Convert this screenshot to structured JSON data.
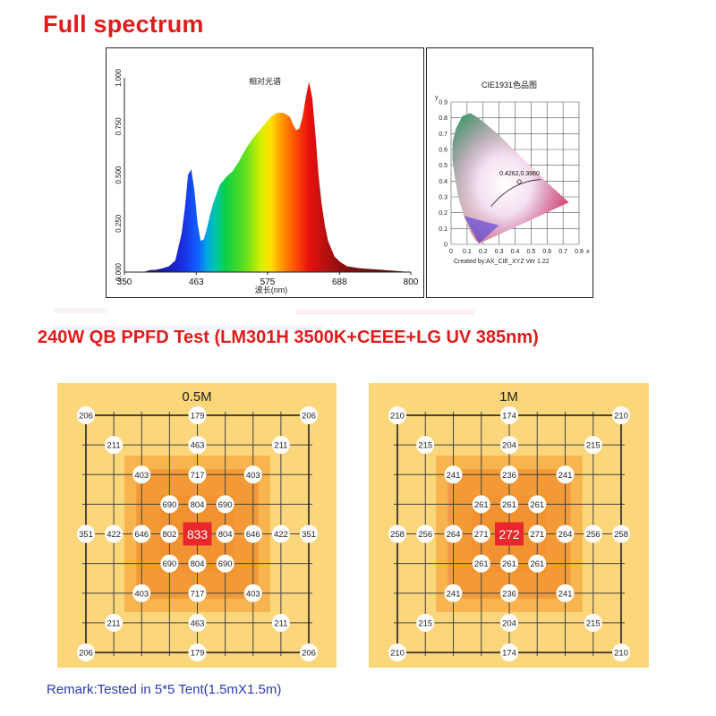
{
  "title": "Full spectrum",
  "test_title": "240W QB PPFD Test (LM301H 3500K+CEEE+LG UV 385nm)",
  "remark": "Remark:Tested in 5*5 Tent(1.5mX1.5m)",
  "colors": {
    "title_red": "#e01b1b",
    "remark_blue": "#2a3aa8",
    "grid_bg": "#fcd67a",
    "zone_mid": "#f8b44e",
    "zone_inner": "#f29230",
    "center_red": "#e8282a"
  },
  "chart_data": [
    {
      "type": "area",
      "title": "相对光谱",
      "xlabel": "波长(nm)",
      "ylabel": "",
      "xlim": [
        350,
        800
      ],
      "ylim": [
        0,
        1.0
      ],
      "xticks": [
        "350",
        "463",
        "575",
        "688",
        "800"
      ],
      "yticks": [
        "0.000",
        "0.250",
        "0.500",
        "0.750",
        "1.000"
      ],
      "x": [
        350,
        380,
        390,
        400,
        410,
        420,
        430,
        440,
        445,
        450,
        455,
        460,
        465,
        470,
        475,
        480,
        485,
        490,
        500,
        510,
        520,
        530,
        540,
        550,
        560,
        570,
        580,
        590,
        600,
        610,
        615,
        620,
        625,
        630,
        635,
        640,
        645,
        650,
        655,
        660,
        665,
        670,
        680,
        690,
        700,
        720,
        740,
        760,
        780,
        800
      ],
      "y": [
        0,
        0,
        0.01,
        0.012,
        0.02,
        0.03,
        0.06,
        0.2,
        0.33,
        0.5,
        0.53,
        0.42,
        0.25,
        0.16,
        0.17,
        0.23,
        0.3,
        0.36,
        0.45,
        0.49,
        0.52,
        0.57,
        0.63,
        0.68,
        0.72,
        0.76,
        0.8,
        0.82,
        0.82,
        0.8,
        0.76,
        0.73,
        0.74,
        0.8,
        0.9,
        0.98,
        0.9,
        0.72,
        0.5,
        0.35,
        0.24,
        0.16,
        0.08,
        0.05,
        0.03,
        0.02,
        0.015,
        0.01,
        0.005,
        0
      ]
    },
    {
      "type": "scatter",
      "title": "CIE1931色品图",
      "footer": "Created by:AX_CIE_XYZ Ver 1.22",
      "xlabel": "x",
      "ylabel": "y",
      "xlim": [
        0,
        0.8
      ],
      "ylim": [
        0,
        0.9
      ],
      "xticks": [
        "0",
        "0.1",
        "0.2",
        "0.3",
        "0.4",
        "0.5",
        "0.6",
        "0.7",
        "0.8"
      ],
      "yticks": [
        "0",
        "0.1",
        "0.2",
        "0.3",
        "0.4",
        "0.5",
        "0.6",
        "0.7",
        "0.8",
        "0.9"
      ],
      "point": {
        "x": 0.4262,
        "y": 0.396,
        "label": "0.4262,0.3960"
      }
    },
    {
      "type": "table",
      "title": "0.5M",
      "points": [
        {
          "v": "206",
          "c": 0,
          "r": 0
        },
        {
          "v": "179",
          "c": 4,
          "r": 0
        },
        {
          "v": "206",
          "c": 8,
          "r": 0
        },
        {
          "v": "211",
          "c": 1,
          "r": 1
        },
        {
          "v": "463",
          "c": 4,
          "r": 1
        },
        {
          "v": "211",
          "c": 7,
          "r": 1
        },
        {
          "v": "403",
          "c": 2,
          "r": 2
        },
        {
          "v": "717",
          "c": 4,
          "r": 2
        },
        {
          "v": "403",
          "c": 6,
          "r": 2
        },
        {
          "v": "690",
          "c": 3,
          "r": 3
        },
        {
          "v": "804",
          "c": 4,
          "r": 3
        },
        {
          "v": "690",
          "c": 5,
          "r": 3
        },
        {
          "v": "351",
          "c": 0,
          "r": 4
        },
        {
          "v": "422",
          "c": 1,
          "r": 4
        },
        {
          "v": "646",
          "c": 2,
          "r": 4
        },
        {
          "v": "802",
          "c": 3,
          "r": 4
        },
        {
          "v": "833",
          "c": 4,
          "r": 4,
          "center": true
        },
        {
          "v": "804",
          "c": 5,
          "r": 4
        },
        {
          "v": "646",
          "c": 6,
          "r": 4
        },
        {
          "v": "422",
          "c": 7,
          "r": 4
        },
        {
          "v": "351",
          "c": 8,
          "r": 4
        },
        {
          "v": "690",
          "c": 3,
          "r": 5
        },
        {
          "v": "804",
          "c": 4,
          "r": 5
        },
        {
          "v": "690",
          "c": 5,
          "r": 5
        },
        {
          "v": "403",
          "c": 2,
          "r": 6
        },
        {
          "v": "717",
          "c": 4,
          "r": 6
        },
        {
          "v": "403",
          "c": 6,
          "r": 6
        },
        {
          "v": "211",
          "c": 1,
          "r": 7
        },
        {
          "v": "463",
          "c": 4,
          "r": 7
        },
        {
          "v": "211",
          "c": 7,
          "r": 7
        },
        {
          "v": "206",
          "c": 0,
          "r": 8
        },
        {
          "v": "179",
          "c": 4,
          "r": 8
        },
        {
          "v": "206",
          "c": 8,
          "r": 8
        }
      ]
    },
    {
      "type": "table",
      "title": "1M",
      "points": [
        {
          "v": "210",
          "c": 0,
          "r": 0
        },
        {
          "v": "174",
          "c": 4,
          "r": 0
        },
        {
          "v": "210",
          "c": 8,
          "r": 0
        },
        {
          "v": "215",
          "c": 1,
          "r": 1
        },
        {
          "v": "204",
          "c": 4,
          "r": 1
        },
        {
          "v": "215",
          "c": 7,
          "r": 1
        },
        {
          "v": "241",
          "c": 2,
          "r": 2
        },
        {
          "v": "236",
          "c": 4,
          "r": 2
        },
        {
          "v": "241",
          "c": 6,
          "r": 2
        },
        {
          "v": "261",
          "c": 3,
          "r": 3
        },
        {
          "v": "261",
          "c": 4,
          "r": 3
        },
        {
          "v": "261",
          "c": 5,
          "r": 3
        },
        {
          "v": "258",
          "c": 0,
          "r": 4
        },
        {
          "v": "256",
          "c": 1,
          "r": 4
        },
        {
          "v": "264",
          "c": 2,
          "r": 4
        },
        {
          "v": "271",
          "c": 3,
          "r": 4
        },
        {
          "v": "272",
          "c": 4,
          "r": 4,
          "center": true
        },
        {
          "v": "271",
          "c": 5,
          "r": 4
        },
        {
          "v": "264",
          "c": 6,
          "r": 4
        },
        {
          "v": "256",
          "c": 7,
          "r": 4
        },
        {
          "v": "258",
          "c": 8,
          "r": 4
        },
        {
          "v": "261",
          "c": 3,
          "r": 5
        },
        {
          "v": "261",
          "c": 4,
          "r": 5
        },
        {
          "v": "261",
          "c": 5,
          "r": 5
        },
        {
          "v": "241",
          "c": 2,
          "r": 6
        },
        {
          "v": "236",
          "c": 4,
          "r": 6
        },
        {
          "v": "241",
          "c": 6,
          "r": 6
        },
        {
          "v": "215",
          "c": 1,
          "r": 7
        },
        {
          "v": "204",
          "c": 4,
          "r": 7
        },
        {
          "v": "215",
          "c": 7,
          "r": 7
        },
        {
          "v": "210",
          "c": 0,
          "r": 8
        },
        {
          "v": "174",
          "c": 4,
          "r": 8
        },
        {
          "v": "210",
          "c": 8,
          "r": 8
        }
      ]
    }
  ]
}
